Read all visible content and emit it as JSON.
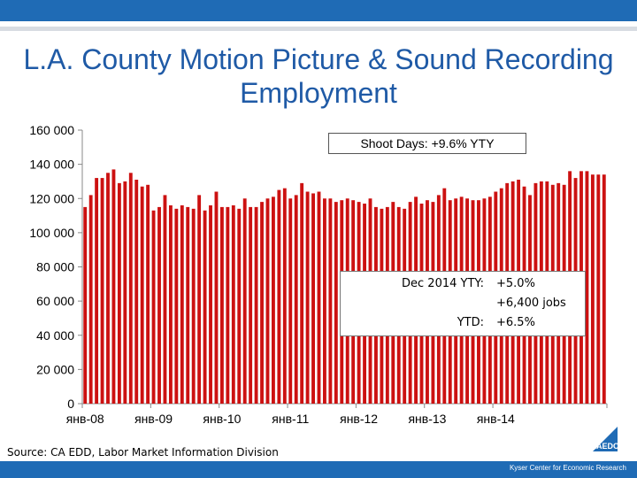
{
  "title": "L.A. County Motion Picture & Sound Recording Employment",
  "callout_shoot_days": "Shoot Days: +9.6% YTY",
  "callout_dec": {
    "row1_label": "Dec 2014 YTY:",
    "row1_value": "+5.0%",
    "row2_value": "+6,400 jobs",
    "row3_label": "YTD:",
    "row3_value": "+6.5%"
  },
  "source": "Source: CA EDD, Labor Market Information Division",
  "footer": "Kyser Center for Economic Research",
  "logo_text": "LAEDC",
  "colors": {
    "bar": "#cc1111",
    "title": "#1f5aa6",
    "band": "#1f6bb5"
  },
  "chart_data": {
    "type": "bar",
    "title": "L.A. County Motion Picture & Sound Recording Employment",
    "xlabel": "",
    "ylabel": "",
    "ylim": [
      0,
      160000
    ],
    "ytick_labels": [
      "0",
      "20 000",
      "40 000",
      "60 000",
      "80 000",
      "100 000",
      "120 000",
      "140 000",
      "160 000"
    ],
    "xtick_labels": [
      "янв-08",
      "янв-09",
      "янв-10",
      "янв-11",
      "янв-12",
      "янв-13",
      "янв-14"
    ],
    "series": [
      {
        "name": "Employment",
        "values": [
          115000,
          122000,
          132000,
          132000,
          135000,
          137000,
          129000,
          130000,
          135000,
          131000,
          127000,
          128000,
          113000,
          115000,
          122000,
          116000,
          114000,
          116000,
          115000,
          114000,
          122000,
          113000,
          116000,
          124000,
          115000,
          115000,
          116000,
          114000,
          120000,
          115000,
          115000,
          118000,
          120000,
          121000,
          125000,
          126000,
          120000,
          122000,
          129000,
          124000,
          123000,
          124000,
          120000,
          120000,
          118000,
          119000,
          120000,
          119000,
          118000,
          117000,
          120000,
          115000,
          114000,
          115000,
          118000,
          115000,
          114000,
          118000,
          121000,
          117000,
          119000,
          118000,
          122000,
          126000,
          119000,
          120000,
          121000,
          120000,
          119000,
          119000,
          120000,
          121000,
          124000,
          126000,
          129000,
          130000,
          131000,
          127000,
          122000,
          129000,
          130000,
          130000,
          128000,
          129000,
          128000,
          136000,
          132000,
          136000,
          136000,
          134000,
          134000,
          134000
        ]
      }
    ]
  }
}
